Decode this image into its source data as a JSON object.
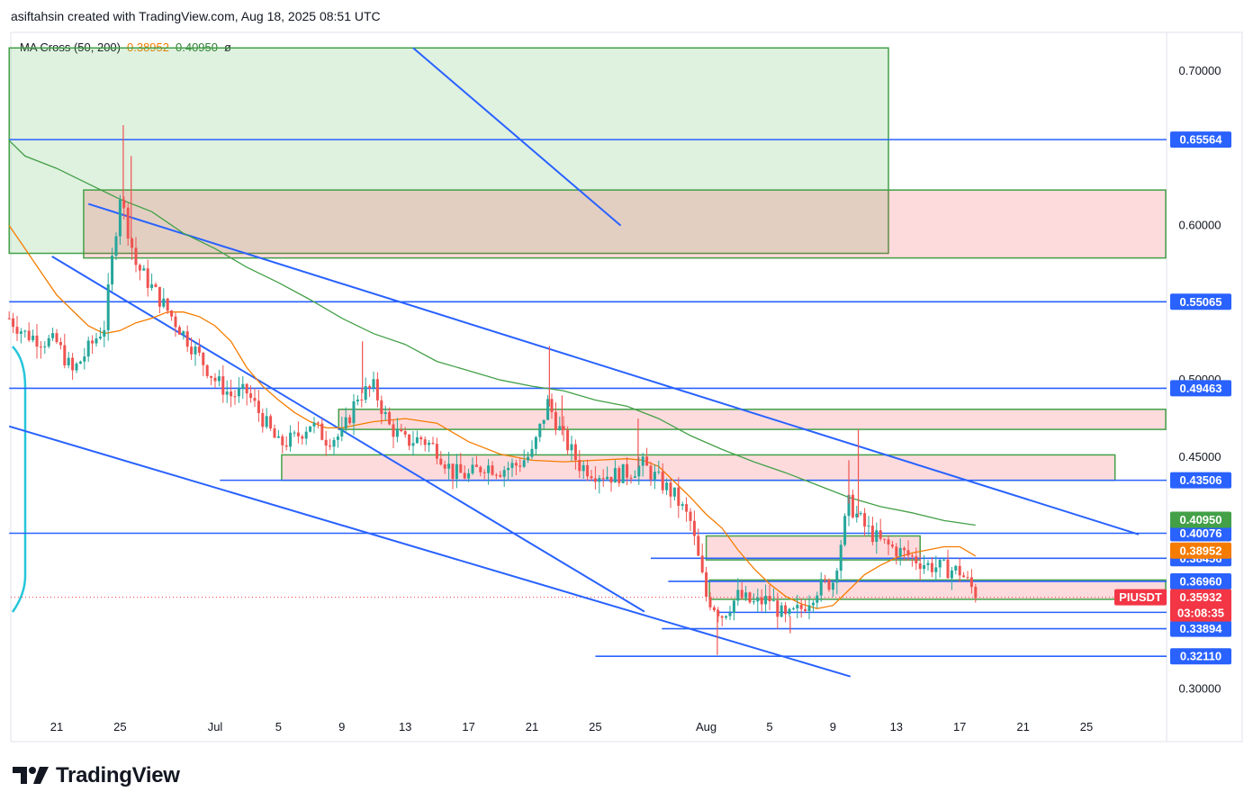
{
  "header": {
    "title": "asiftahsin created with TradingView.com, Aug 18, 2025 08:51 UTC"
  },
  "indicator": {
    "name": "MA Cross (50, 200)",
    "ma50": "0.38952",
    "ma200": "0.40950",
    "symbol": "ø"
  },
  "branding": {
    "logo_text": "TradingView"
  },
  "colors": {
    "blue": "#2962ff",
    "orange": "#f57c00",
    "green": "#43a047",
    "red": "#f23645",
    "candle_up": "#26a69a",
    "candle_down": "#ef5350"
  },
  "chart_data": {
    "type": "candlestick",
    "symbol": "PIUSDT",
    "ylim": [
      0.28,
      0.72
    ],
    "y_ticks": [
      0.7,
      0.6,
      0.5,
      0.45,
      0.3
    ],
    "y_tick_labels": [
      "0.70000",
      "0.60000",
      "0.50000",
      "0.45000",
      "0.30000"
    ],
    "x_ticks": [
      {
        "day": 21,
        "label": "21"
      },
      {
        "day": 25,
        "label": "25"
      },
      {
        "day": 31,
        "label": "Jul"
      },
      {
        "day": 35,
        "label": "5"
      },
      {
        "day": 39,
        "label": "9"
      },
      {
        "day": 43,
        "label": "13"
      },
      {
        "day": 47,
        "label": "17"
      },
      {
        "day": 51,
        "label": "21"
      },
      {
        "day": 55,
        "label": "25"
      },
      {
        "day": 62,
        "label": "Aug"
      },
      {
        "day": 66,
        "label": "5"
      },
      {
        "day": 70,
        "label": "9"
      },
      {
        "day": 74,
        "label": "13"
      },
      {
        "day": 78,
        "label": "17"
      },
      {
        "day": 82,
        "label": "21"
      },
      {
        "day": 86,
        "label": "25"
      }
    ],
    "horizontal_levels": [
      {
        "value": 0.65564,
        "label": "0.65564",
        "from_day": 18
      },
      {
        "value": 0.55065,
        "label": "0.55065",
        "from_day": 18
      },
      {
        "value": 0.49463,
        "label": "0.49463",
        "from_day": 18
      },
      {
        "value": 0.43506,
        "label": "0.43506",
        "from_day": 31.3
      },
      {
        "value": 0.40076,
        "label": "0.40076",
        "from_day": 18
      },
      {
        "value": 0.38456,
        "label": "0.38456",
        "from_day": 58.5
      },
      {
        "value": 0.3696,
        "label": "0.36960",
        "from_day": 59.6
      },
      {
        "value": 0.34955,
        "label": "0.34955",
        "from_day": 62.8
      },
      {
        "value": 0.33894,
        "label": "0.33894",
        "from_day": 59.2
      },
      {
        "value": 0.3211,
        "label": "0.32110",
        "from_day": 55
      }
    ],
    "ma_labels": [
      {
        "value": 0.4095,
        "label": "0.40950",
        "color": "#43a047"
      },
      {
        "value": 0.38952,
        "label": "0.38952",
        "color": "#f57c00"
      }
    ],
    "last_price": {
      "value": 0.35932,
      "label": "0.35932",
      "countdown": "03:08:35"
    },
    "zones": [
      {
        "kind": "green",
        "from_day": 18,
        "to_day": 73.5,
        "top": 0.715,
        "bottom": 0.582
      },
      {
        "kind": "red",
        "from_day": 22.7,
        "to_day": 91,
        "top": 0.623,
        "bottom": 0.579
      },
      {
        "kind": "red",
        "from_day": 38.8,
        "to_day": 91,
        "top": 0.481,
        "bottom": 0.468
      },
      {
        "kind": "red",
        "from_day": 35.2,
        "to_day": 87.8,
        "top": 0.4515,
        "bottom": 0.435
      },
      {
        "kind": "red",
        "from_day": 62,
        "to_day": 75.5,
        "top": 0.399,
        "bottom": 0.3835
      },
      {
        "kind": "red",
        "from_day": 62.2,
        "to_day": 91,
        "top": 0.3705,
        "bottom": 0.358
      }
    ],
    "trendlines": [
      {
        "from": [
          20.7,
          0.58
        ],
        "to": [
          58.1,
          0.35
        ]
      },
      {
        "from": [
          23,
          0.614
        ],
        "to": [
          89.3,
          0.4
        ]
      },
      {
        "from": [
          43.5,
          0.715
        ],
        "to": [
          56.6,
          0.6
        ]
      },
      {
        "from": [
          18,
          0.47
        ],
        "to": [
          71.1,
          0.308
        ]
      }
    ],
    "ma200": [
      {
        "day": 18,
        "value": 0.655
      },
      {
        "day": 19,
        "value": 0.645
      },
      {
        "day": 21,
        "value": 0.637
      },
      {
        "day": 23,
        "value": 0.627
      },
      {
        "day": 25,
        "value": 0.617
      },
      {
        "day": 27,
        "value": 0.609
      },
      {
        "day": 29,
        "value": 0.595
      },
      {
        "day": 31,
        "value": 0.585
      },
      {
        "day": 33,
        "value": 0.573
      },
      {
        "day": 35,
        "value": 0.563
      },
      {
        "day": 37,
        "value": 0.552
      },
      {
        "day": 39,
        "value": 0.54
      },
      {
        "day": 41,
        "value": 0.53
      },
      {
        "day": 43,
        "value": 0.523
      },
      {
        "day": 45,
        "value": 0.512
      },
      {
        "day": 47,
        "value": 0.506
      },
      {
        "day": 49,
        "value": 0.5
      },
      {
        "day": 51,
        "value": 0.496
      },
      {
        "day": 53,
        "value": 0.493
      },
      {
        "day": 55,
        "value": 0.487
      },
      {
        "day": 57,
        "value": 0.483
      },
      {
        "day": 59,
        "value": 0.475
      },
      {
        "day": 61,
        "value": 0.464
      },
      {
        "day": 63,
        "value": 0.455
      },
      {
        "day": 65,
        "value": 0.447
      },
      {
        "day": 67,
        "value": 0.44
      },
      {
        "day": 69,
        "value": 0.432
      },
      {
        "day": 71,
        "value": 0.424
      },
      {
        "day": 73,
        "value": 0.418
      },
      {
        "day": 75,
        "value": 0.414
      },
      {
        "day": 77,
        "value": 0.409
      },
      {
        "day": 79,
        "value": 0.406
      }
    ],
    "ma50": [
      {
        "day": 18,
        "value": 0.6
      },
      {
        "day": 19,
        "value": 0.585
      },
      {
        "day": 20,
        "value": 0.57
      },
      {
        "day": 21,
        "value": 0.555
      },
      {
        "day": 22,
        "value": 0.545
      },
      {
        "day": 23,
        "value": 0.535
      },
      {
        "day": 24,
        "value": 0.53
      },
      {
        "day": 25,
        "value": 0.532
      },
      {
        "day": 26,
        "value": 0.537
      },
      {
        "day": 27,
        "value": 0.54
      },
      {
        "day": 28,
        "value": 0.544
      },
      {
        "day": 29,
        "value": 0.544
      },
      {
        "day": 30,
        "value": 0.541
      },
      {
        "day": 31,
        "value": 0.535
      },
      {
        "day": 32,
        "value": 0.525
      },
      {
        "day": 33,
        "value": 0.508
      },
      {
        "day": 34,
        "value": 0.496
      },
      {
        "day": 35,
        "value": 0.487
      },
      {
        "day": 36,
        "value": 0.479
      },
      {
        "day": 37,
        "value": 0.473
      },
      {
        "day": 38,
        "value": 0.469
      },
      {
        "day": 39,
        "value": 0.469
      },
      {
        "day": 41,
        "value": 0.473
      },
      {
        "day": 43,
        "value": 0.475
      },
      {
        "day": 45,
        "value": 0.472
      },
      {
        "day": 47,
        "value": 0.46
      },
      {
        "day": 49,
        "value": 0.452
      },
      {
        "day": 51,
        "value": 0.448
      },
      {
        "day": 53,
        "value": 0.447
      },
      {
        "day": 55,
        "value": 0.448
      },
      {
        "day": 57,
        "value": 0.449
      },
      {
        "day": 58,
        "value": 0.448
      },
      {
        "day": 59,
        "value": 0.444
      },
      {
        "day": 60,
        "value": 0.434
      },
      {
        "day": 61,
        "value": 0.424
      },
      {
        "day": 62,
        "value": 0.413
      },
      {
        "day": 63,
        "value": 0.404
      },
      {
        "day": 64,
        "value": 0.39
      },
      {
        "day": 65,
        "value": 0.378
      },
      {
        "day": 66,
        "value": 0.368
      },
      {
        "day": 67,
        "value": 0.36
      },
      {
        "day": 68,
        "value": 0.355
      },
      {
        "day": 69,
        "value": 0.352
      },
      {
        "day": 70,
        "value": 0.354
      },
      {
        "day": 71,
        "value": 0.364
      },
      {
        "day": 72,
        "value": 0.374
      },
      {
        "day": 73,
        "value": 0.38
      },
      {
        "day": 74,
        "value": 0.385
      },
      {
        "day": 75,
        "value": 0.388
      },
      {
        "day": 76,
        "value": 0.39
      },
      {
        "day": 77,
        "value": 0.392
      },
      {
        "day": 78,
        "value": 0.392
      },
      {
        "day": 79,
        "value": 0.386
      }
    ],
    "price_path": [
      {
        "day": 18,
        "value": 0.54
      },
      {
        "day": 19,
        "value": 0.53
      },
      {
        "day": 20,
        "value": 0.526
      },
      {
        "day": 21,
        "value": 0.524
      },
      {
        "day": 22,
        "value": 0.505
      },
      {
        "day": 23,
        "value": 0.52
      },
      {
        "day": 24,
        "value": 0.535
      },
      {
        "day": 25,
        "value": 0.62
      },
      {
        "day": 26,
        "value": 0.575
      },
      {
        "day": 27,
        "value": 0.56
      },
      {
        "day": 28,
        "value": 0.545
      },
      {
        "day": 29,
        "value": 0.53
      },
      {
        "day": 30,
        "value": 0.515
      },
      {
        "day": 31,
        "value": 0.5
      },
      {
        "day": 32,
        "value": 0.49
      },
      {
        "day": 33,
        "value": 0.492
      },
      {
        "day": 34,
        "value": 0.475
      },
      {
        "day": 35,
        "value": 0.458
      },
      {
        "day": 36,
        "value": 0.462
      },
      {
        "day": 37,
        "value": 0.472
      },
      {
        "day": 38,
        "value": 0.462
      },
      {
        "day": 39,
        "value": 0.464
      },
      {
        "day": 40,
        "value": 0.49
      },
      {
        "day": 41,
        "value": 0.495
      },
      {
        "day": 42,
        "value": 0.47
      },
      {
        "day": 43,
        "value": 0.46
      },
      {
        "day": 44,
        "value": 0.462
      },
      {
        "day": 45,
        "value": 0.455
      },
      {
        "day": 46,
        "value": 0.44
      },
      {
        "day": 47,
        "value": 0.438
      },
      {
        "day": 48,
        "value": 0.445
      },
      {
        "day": 49,
        "value": 0.442
      },
      {
        "day": 50,
        "value": 0.445
      },
      {
        "day": 51,
        "value": 0.452
      },
      {
        "day": 52,
        "value": 0.485
      },
      {
        "day": 53,
        "value": 0.462
      },
      {
        "day": 54,
        "value": 0.445
      },
      {
        "day": 55,
        "value": 0.44
      },
      {
        "day": 56,
        "value": 0.438
      },
      {
        "day": 57,
        "value": 0.44
      },
      {
        "day": 58,
        "value": 0.445
      },
      {
        "day": 59,
        "value": 0.435
      },
      {
        "day": 60,
        "value": 0.425
      },
      {
        "day": 61,
        "value": 0.408
      },
      {
        "day": 62,
        "value": 0.36
      },
      {
        "day": 63,
        "value": 0.348
      },
      {
        "day": 64,
        "value": 0.36
      },
      {
        "day": 65,
        "value": 0.355
      },
      {
        "day": 66,
        "value": 0.358
      },
      {
        "day": 67,
        "value": 0.345
      },
      {
        "day": 68,
        "value": 0.352
      },
      {
        "day": 69,
        "value": 0.365
      },
      {
        "day": 70,
        "value": 0.37
      },
      {
        "day": 71,
        "value": 0.42
      },
      {
        "day": 72,
        "value": 0.405
      },
      {
        "day": 73,
        "value": 0.395
      },
      {
        "day": 74,
        "value": 0.39
      },
      {
        "day": 75,
        "value": 0.385
      },
      {
        "day": 76,
        "value": 0.38
      },
      {
        "day": 77,
        "value": 0.378
      },
      {
        "day": 78,
        "value": 0.376
      },
      {
        "day": 79,
        "value": 0.362
      }
    ],
    "wicks": [
      {
        "day": 25.2,
        "value": 0.665
      },
      {
        "day": 25.7,
        "value": 0.645
      },
      {
        "day": 40.3,
        "value": 0.525
      },
      {
        "day": 52.1,
        "value": 0.522
      },
      {
        "day": 52.9,
        "value": 0.49
      },
      {
        "day": 57.7,
        "value": 0.475
      },
      {
        "day": 62.7,
        "value": 0.322
      },
      {
        "day": 71.6,
        "value": 0.468
      },
      {
        "day": 71,
        "value": 0.448
      },
      {
        "day": 67.3,
        "value": 0.336
      }
    ]
  }
}
